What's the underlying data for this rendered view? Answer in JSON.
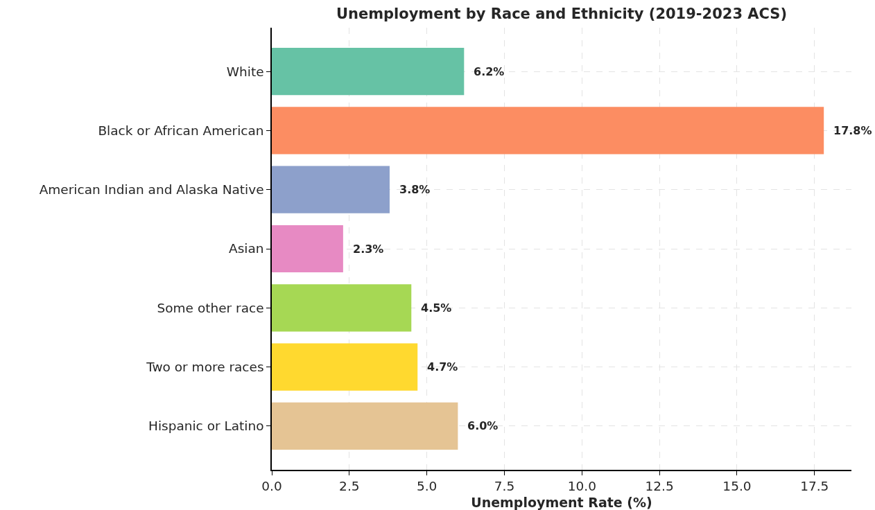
{
  "chart_data": {
    "type": "bar",
    "orientation": "horizontal",
    "title": "Unemployment by Race and Ethnicity (2019-2023 ACS)",
    "xlabel": "Unemployment Rate (%)",
    "categories": [
      "White",
      "Black or African American",
      "American Indian and Alaska Native",
      "Asian",
      "Some other race",
      "Two or more races",
      "Hispanic or Latino"
    ],
    "values": [
      6.2,
      17.8,
      3.8,
      2.3,
      4.5,
      4.7,
      6.0
    ],
    "colors": [
      "#66c2a5",
      "#fc8d62",
      "#8da0cb",
      "#e78ac3",
      "#a6d854",
      "#ffd92f",
      "#e5c494"
    ],
    "value_labels": [
      "6.2%",
      "17.8%",
      "3.8%",
      "2.3%",
      "4.5%",
      "4.7%",
      "6.0%"
    ],
    "xlim": [
      0,
      18.69
    ],
    "xticks": [
      {
        "value": 0,
        "label": "0.0"
      },
      2.5,
      {
        "value": 5,
        "label": "5.0"
      },
      7.5,
      {
        "value": 10,
        "label": "10.0"
      },
      12.5,
      {
        "value": 15,
        "label": "15.0"
      },
      17.5
    ],
    "grid": true
  }
}
